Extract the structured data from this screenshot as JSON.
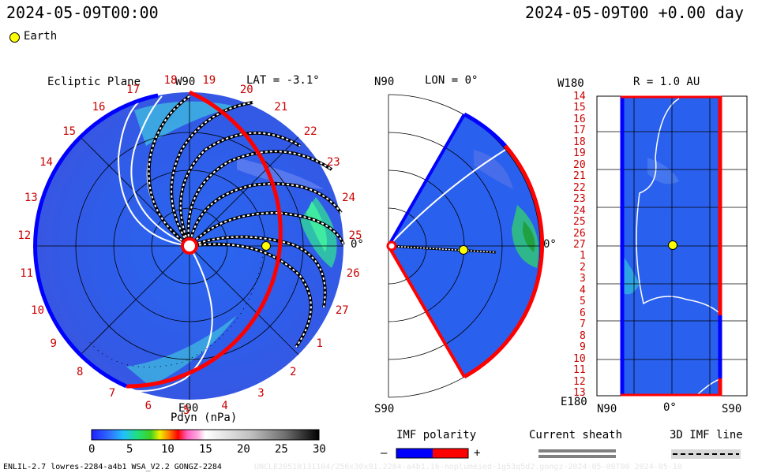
{
  "header": {
    "left_time": "2024-05-09T00:00",
    "right_time": "2024-05-09T00 +0.00 day",
    "legend_label": "Earth"
  },
  "colors": {
    "earth": "#ffff00",
    "positive": "#ff0000",
    "negative": "#0000ff",
    "sheath": "#808080",
    "annotation": "#cc0000"
  },
  "chart_data": [
    {
      "type": "heatmap",
      "panel": "ecliptic-plane",
      "title": "Ecliptic Plane",
      "subtitle": "LAT = -3.1°",
      "top_label": "W90",
      "bottom_label": "E90",
      "right_label": "0°",
      "carrington_ticks": [
        "20",
        "21",
        "22",
        "23",
        "24",
        "25",
        "26",
        "27",
        "1",
        "2",
        "3",
        "4",
        "5",
        "6",
        "7",
        "8",
        "9",
        "10",
        "11",
        "12",
        "13",
        "14",
        "15",
        "16",
        "17",
        "18",
        "19"
      ],
      "earth_position": {
        "r_au": 1.0,
        "angle_deg": 0
      }
    },
    {
      "type": "heatmap",
      "panel": "meridional-plane",
      "title": "LON = 0°",
      "top_label": "N90",
      "bottom_label": "S90",
      "right_label": "0°",
      "lat_range": [
        -60,
        60
      ],
      "earth_position": {
        "r_au": 1.0,
        "lat_deg": 0
      }
    },
    {
      "type": "heatmap",
      "panel": "shell-r-1au",
      "title": "R = 1.0 AU",
      "top_left_label": "W180",
      "bottom_left_label": "E180",
      "x_labels": [
        "N90",
        "0°",
        "S90"
      ],
      "y_tick_labels": [
        "14",
        "15",
        "16",
        "17",
        "18",
        "19",
        "20",
        "21",
        "22",
        "23",
        "24",
        "25",
        "26",
        "27",
        "1",
        "2",
        "3",
        "4",
        "5",
        "6",
        "7",
        "8",
        "9",
        "10",
        "11",
        "12",
        "13"
      ]
    }
  ],
  "colorbar": {
    "title": "Pdyn (nPa)",
    "ticks": [
      "0",
      "5",
      "10",
      "15",
      "20",
      "25",
      "30"
    ],
    "range": [
      0,
      30
    ]
  },
  "legends": {
    "imf_polarity": "IMF polarity",
    "minus": "–",
    "plus": "+",
    "current_sheath": "Current sheath",
    "imf_line": "3D IMF line"
  },
  "footer": {
    "left": "ENLIL-2.7 lowres-2284-a4b1 WSA_V2.2 GONGZ-2284",
    "right": "UNCLE20510131104/256x30x91.2284-a4b1.16-noplumeied-1g53q5d2.gongz-2024-05-09T00 2024-05-10"
  }
}
